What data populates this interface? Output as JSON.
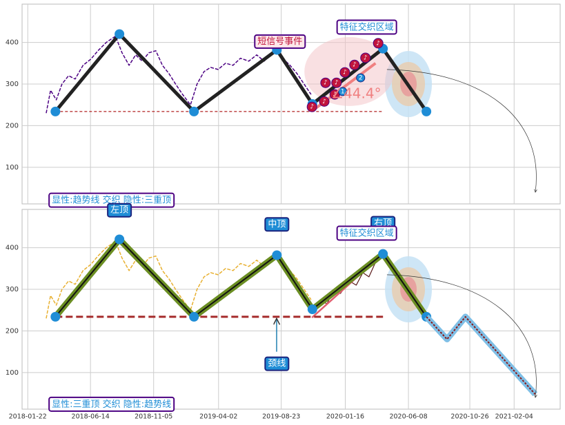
{
  "chart_data": [
    {
      "type": "line",
      "xlim": [
        "2018-01-09",
        "2021-05-20"
      ],
      "ylim": [
        12,
        492
      ],
      "yticks": [
        100,
        200,
        300,
        400
      ],
      "grid": true,
      "series": [
        {
          "color": "#4b0082",
          "width": 1.5,
          "dash": "5 2",
          "x": [
            "2018-03-05",
            "2018-03-15",
            "2018-03-28",
            "2018-04-10",
            "2018-04-25",
            "2018-05-10",
            "2018-05-28",
            "2018-06-15",
            "2018-07-01",
            "2018-07-20",
            "2018-08-10",
            "2018-08-25",
            "2018-09-10",
            "2018-09-25",
            "2018-10-10",
            "2018-10-25",
            "2018-11-10",
            "2018-11-25",
            "2018-12-10",
            "2018-12-25",
            "2019-01-10",
            "2019-01-28",
            "2019-02-12",
            "2019-02-28",
            "2019-03-15",
            "2019-04-01",
            "2019-04-18",
            "2019-05-05",
            "2019-05-22",
            "2019-06-10",
            "2019-06-28",
            "2019-07-15",
            "2019-08-01",
            "2019-08-12",
            "2019-08-28",
            "2019-09-12",
            "2019-09-28",
            "2019-10-14",
            "2019-10-30"
          ],
          "values": [
            230,
            285,
            262,
            300,
            320,
            312,
            345,
            360,
            380,
            400,
            415,
            375,
            345,
            370,
            355,
            375,
            380,
            345,
            325,
            300,
            275,
            250,
            300,
            330,
            340,
            335,
            350,
            345,
            362,
            355,
            370,
            355,
            372,
            383,
            360,
            345,
            325,
            300,
            275
          ]
        },
        {
          "color": "#f08080",
          "width": 4,
          "x": [
            "2019-11-01",
            "2020-03-25"
          ],
          "values": [
            235,
            350
          ]
        },
        {
          "color": "#b22222",
          "width": 1.2,
          "dash": "4 3",
          "x": [
            "2018-03-26",
            "2020-04-11"
          ],
          "values": [
            234,
            234
          ]
        },
        {
          "color": "#222222",
          "width": 5,
          "marker": "#1f8dd6",
          "x": [
            "2018-03-26",
            "2018-08-19",
            "2019-02-05",
            "2019-08-13",
            "2019-11-02",
            "2020-04-11",
            "2020-07-19"
          ],
          "values": [
            234,
            420,
            234,
            382,
            252,
            385,
            234
          ]
        }
      ],
      "event_markers": {
        "symbol": "♪",
        "color": "#c0143c",
        "x": [
          "2019-11-01",
          "2019-11-29",
          "2019-12-02",
          "2019-12-23",
          "2019-12-27",
          "2020-01-15",
          "2020-02-06",
          "2020-03-02",
          "2020-03-31"
        ],
        "values": [
          245,
          258,
          303,
          275,
          303,
          328,
          346,
          363,
          398
        ]
      },
      "numbered_markers": {
        "color": "#1f8dd6",
        "labels": [
          "1",
          "2"
        ],
        "x": [
          "2020-01-10",
          "2020-02-20"
        ],
        "values": [
          282,
          315
        ]
      },
      "annotations": [
        {
          "text": "短信号事件",
          "x": "2019-08-20",
          "y": 402,
          "style": "outlined",
          "edge": "#4b0082",
          "color": "#c0143c",
          "bg": "#fde8ea"
        },
        {
          "text": "特征交织区域",
          "x": "2020-03-05",
          "y": 436,
          "style": "outlined",
          "edge": "#4b0082",
          "color": "#1f8dd6",
          "bg": "#ffffff"
        },
        {
          "text": "∠44.4°",
          "x": "2020-02-10",
          "y": 275,
          "style": "plain",
          "color": "#f08080",
          "size": 20
        },
        {
          "text": "显性:趋势线 交织 隐性:三重顶",
          "x": "2018-08-01",
          "y": 20,
          "style": "outlined",
          "edge": "#4b0082",
          "color": "#1f8dd6",
          "bg": "#ffffff"
        }
      ]
    },
    {
      "type": "line",
      "xlim": [
        "2018-01-09",
        "2021-05-20"
      ],
      "ylim": [
        12,
        492
      ],
      "yticks": [
        100,
        200,
        300,
        400
      ],
      "grid": true,
      "xticks": [
        "2018-01-22",
        "2018-06-14",
        "2018-11-05",
        "2019-04-02",
        "2019-08-23",
        "2020-01-16",
        "2020-06-08",
        "2020-10-26",
        "2021-02-04"
      ],
      "series": [
        {
          "color": "#e8b030",
          "width": 1.5,
          "dash": "5 2",
          "x": [
            "2018-03-05",
            "2018-03-15",
            "2018-03-28",
            "2018-04-10",
            "2018-04-25",
            "2018-05-10",
            "2018-05-28",
            "2018-06-15",
            "2018-07-01",
            "2018-07-20",
            "2018-08-10",
            "2018-08-25",
            "2018-09-10",
            "2018-09-25",
            "2018-10-10",
            "2018-10-25",
            "2018-11-10",
            "2018-11-25",
            "2018-12-10",
            "2018-12-25",
            "2019-01-10",
            "2019-01-28",
            "2019-02-12",
            "2019-02-28",
            "2019-03-15",
            "2019-04-01",
            "2019-04-18",
            "2019-05-05",
            "2019-05-22",
            "2019-06-10",
            "2019-06-28",
            "2019-07-15",
            "2019-08-01",
            "2019-08-12",
            "2019-08-28",
            "2019-09-12",
            "2019-09-28",
            "2019-10-14",
            "2019-10-30"
          ],
          "values": [
            230,
            285,
            262,
            300,
            320,
            312,
            345,
            360,
            380,
            400,
            415,
            375,
            345,
            370,
            355,
            375,
            380,
            345,
            325,
            300,
            275,
            250,
            300,
            330,
            340,
            335,
            350,
            345,
            362,
            355,
            370,
            355,
            372,
            383,
            360,
            345,
            325,
            300,
            275
          ]
        },
        {
          "color": "#5a1a1a",
          "width": 1.2,
          "x": [
            "2019-11-02",
            "2019-11-20",
            "2019-12-05",
            "2019-12-20",
            "2020-01-05",
            "2020-01-25",
            "2020-02-10",
            "2020-02-25",
            "2020-03-10",
            "2020-03-25",
            "2020-04-11"
          ],
          "values": [
            252,
            275,
            265,
            295,
            290,
            320,
            310,
            340,
            330,
            365,
            385
          ]
        },
        {
          "color": "#e06070",
          "width": 2.5,
          "x": [
            "2019-11-01",
            "2020-04-11"
          ],
          "values": [
            232,
            385
          ]
        },
        {
          "color": "#a52a2a",
          "width": 3,
          "dash": "10 5",
          "x": [
            "2018-03-26",
            "2020-04-11"
          ],
          "values": [
            234,
            234
          ]
        },
        {
          "color": "#111111",
          "width": 2,
          "halo": "#6b8e23",
          "marker": "#1f8dd6",
          "x": [
            "2018-03-26",
            "2018-08-19",
            "2019-02-05",
            "2019-08-13",
            "2019-11-02",
            "2020-04-11",
            "2020-07-19"
          ],
          "values": [
            234,
            420,
            234,
            382,
            252,
            385,
            234
          ]
        },
        {
          "color": "#8b1a1a",
          "width": 2,
          "halo": "#7fbfe6",
          "dash": "3 2",
          "x": [
            "2020-07-19",
            "2020-09-04",
            "2020-10-16",
            "2021-03-24"
          ],
          "values": [
            234,
            180,
            234,
            48
          ]
        }
      ],
      "annotations": [
        {
          "text": "左顶",
          "x": "2018-08-19",
          "y": 490,
          "style": "filled",
          "edge": "#1a237e",
          "color": "#ffffff",
          "bg": "#1f8dd6"
        },
        {
          "text": "中顶",
          "x": "2019-08-13",
          "y": 456,
          "style": "filled",
          "edge": "#1a237e",
          "color": "#ffffff",
          "bg": "#1f8dd6"
        },
        {
          "text": "右顶",
          "x": "2020-04-11",
          "y": 459,
          "style": "filled",
          "edge": "#1a237e",
          "color": "#ffffff",
          "bg": "#1f8dd6"
        },
        {
          "text": "颈线",
          "x": "2019-08-13",
          "y": 121,
          "style": "filled",
          "edge": "#1a237e",
          "color": "#ffffff",
          "bg": "#1f8dd6"
        },
        {
          "text": "特征交织区域",
          "x": "2020-03-05",
          "y": 434,
          "style": "outlined",
          "edge": "#4b0082",
          "color": "#1f8dd6",
          "bg": "#ffffff"
        },
        {
          "text": "显性:三重顶 交织 隐性:趋势线",
          "x": "2018-08-01",
          "y": 23,
          "style": "outlined",
          "edge": "#4b0082",
          "color": "#1f8dd6",
          "bg": "#ffffff"
        }
      ]
    }
  ]
}
